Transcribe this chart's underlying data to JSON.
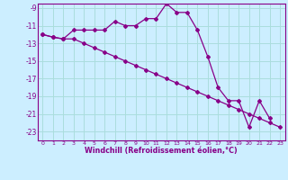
{
  "x": [
    0,
    1,
    2,
    3,
    4,
    5,
    6,
    7,
    8,
    9,
    10,
    11,
    12,
    13,
    14,
    15,
    16,
    17,
    18,
    19,
    20,
    21,
    22,
    23
  ],
  "line1": [
    -12.0,
    -12.3,
    -12.5,
    -11.5,
    -11.5,
    -11.5,
    -11.5,
    -10.5,
    -11.0,
    -11.0,
    -10.2,
    -10.2,
    -8.5,
    -9.5,
    -9.5,
    -11.5,
    -14.5,
    -18.0,
    -19.5,
    -19.5,
    -22.5,
    -19.5,
    -21.5,
    null
  ],
  "line2": [
    -12.0,
    -12.3,
    -12.5,
    -12.5,
    -13.0,
    -13.5,
    -14.0,
    -14.5,
    -15.0,
    -15.5,
    -16.0,
    -16.5,
    -17.0,
    -17.5,
    -18.0,
    -18.5,
    -19.0,
    -19.5,
    -20.0,
    -20.5,
    -21.0,
    -21.5,
    -22.0,
    -22.5
  ],
  "color": "#880088",
  "bg_color": "#cceeff",
  "grid_color": "#aadddd",
  "xlabel": "Windchill (Refroidissement éolien,°C)",
  "yticks": [
    -9,
    -11,
    -13,
    -15,
    -17,
    -19,
    -21,
    -23
  ],
  "xtick_labels": [
    "0",
    "1",
    "2",
    "3",
    "4",
    "5",
    "6",
    "7",
    "8",
    "9",
    "10",
    "11",
    "12",
    "13",
    "14",
    "15",
    "16",
    "17",
    "18",
    "19",
    "20",
    "21",
    "22",
    "23"
  ],
  "ylim": [
    -24.0,
    -8.5
  ],
  "xlim": [
    -0.5,
    23.5
  ]
}
